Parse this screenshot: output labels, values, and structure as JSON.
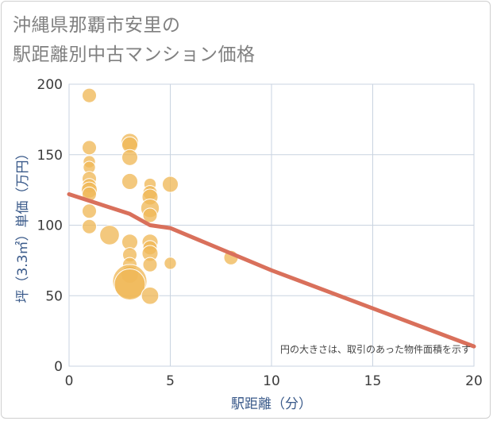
{
  "title": {
    "line1": "沖縄県那覇市安里の",
    "line2": "駅距離別中古マンション価格"
  },
  "chart_data": {
    "type": "scatter",
    "title": "沖縄県那覇市安里の駅距離別中古マンション価格",
    "xlabel": "駅距離（分）",
    "ylabel": "坪（3.3㎡）単価（万円）",
    "xlim": [
      0,
      20
    ],
    "ylim": [
      0,
      200
    ],
    "xticks": [
      0,
      5,
      10,
      15,
      20
    ],
    "yticks": [
      0,
      50,
      100,
      150,
      200
    ],
    "grid": true,
    "note": "円の大きさは、取引のあった物件面積を示す",
    "colors": {
      "points": "#f0b859",
      "trend": "#d9705b",
      "grid": "#c9d3e0"
    },
    "points": [
      {
        "x": 1,
        "y": 192,
        "size": 2
      },
      {
        "x": 1,
        "y": 155,
        "size": 2
      },
      {
        "x": 1,
        "y": 145,
        "size": 1
      },
      {
        "x": 1,
        "y": 141,
        "size": 1
      },
      {
        "x": 1,
        "y": 133,
        "size": 2
      },
      {
        "x": 1,
        "y": 128,
        "size": 2
      },
      {
        "x": 1,
        "y": 125,
        "size": 3
      },
      {
        "x": 1,
        "y": 122,
        "size": 2
      },
      {
        "x": 1,
        "y": 110,
        "size": 2
      },
      {
        "x": 1,
        "y": 99,
        "size": 2
      },
      {
        "x": 2,
        "y": 93,
        "size": 6
      },
      {
        "x": 3,
        "y": 159,
        "size": 4
      },
      {
        "x": 3,
        "y": 157,
        "size": 3
      },
      {
        "x": 3,
        "y": 148,
        "size": 3
      },
      {
        "x": 3,
        "y": 131,
        "size": 3
      },
      {
        "x": 3,
        "y": 88,
        "size": 3
      },
      {
        "x": 3,
        "y": 79,
        "size": 2
      },
      {
        "x": 3,
        "y": 72,
        "size": 2
      },
      {
        "x": 3,
        "y": 65,
        "size": 4
      },
      {
        "x": 3,
        "y": 60,
        "size": 12
      },
      {
        "x": 3,
        "y": 58,
        "size": 8
      },
      {
        "x": 4,
        "y": 129,
        "size": 1
      },
      {
        "x": 4,
        "y": 123,
        "size": 2
      },
      {
        "x": 4,
        "y": 120,
        "size": 3
      },
      {
        "x": 4,
        "y": 112,
        "size": 5
      },
      {
        "x": 4,
        "y": 107,
        "size": 2
      },
      {
        "x": 4,
        "y": 88,
        "size": 3
      },
      {
        "x": 4,
        "y": 84,
        "size": 2
      },
      {
        "x": 4,
        "y": 80,
        "size": 3
      },
      {
        "x": 4,
        "y": 72,
        "size": 2
      },
      {
        "x": 4,
        "y": 50,
        "size": 4
      },
      {
        "x": 5,
        "y": 129,
        "size": 3
      },
      {
        "x": 5,
        "y": 73,
        "size": 1
      },
      {
        "x": 8,
        "y": 77,
        "size": 2
      }
    ],
    "trend": {
      "x": [
        0,
        3,
        4,
        5,
        10,
        15,
        20
      ],
      "y": [
        122,
        108,
        100,
        98,
        68,
        41,
        14
      ]
    }
  }
}
